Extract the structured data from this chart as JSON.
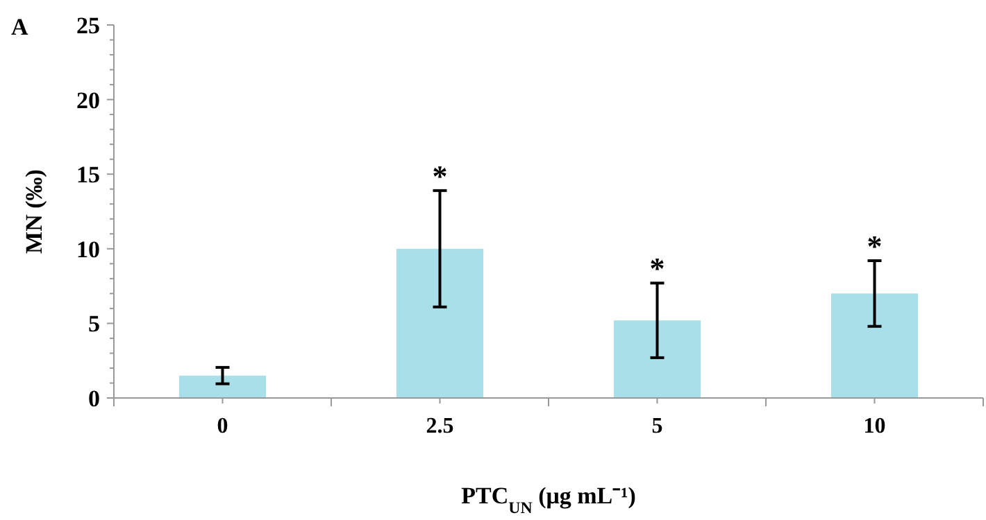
{
  "chart_data": {
    "type": "bar",
    "xlabel": "PTC$_{UN}$ (μg mL⁻¹)",
    "ylabel": "MN (‰)",
    "categories": [
      "0",
      "2.5",
      "5",
      "10"
    ],
    "values": [
      1.5,
      10.0,
      5.2,
      7.0
    ],
    "errors": [
      0.55,
      3.9,
      2.5,
      2.2
    ],
    "color": "#a8dfe9",
    "ylim": [
      0,
      25
    ],
    "yticks": [
      0,
      {
        "value": 1,
        "label": null
      },
      {
        "value": 2,
        "label": null
      },
      {
        "value": 3,
        "label": null
      },
      {
        "value": 4,
        "label": null
      },
      5,
      {
        "value": 6,
        "label": null
      },
      {
        "value": 7,
        "label": null
      },
      {
        "value": 8,
        "label": null
      },
      {
        "value": 9,
        "label": null
      },
      10,
      {
        "value": 11,
        "label": null
      },
      {
        "value": 12,
        "label": null
      },
      {
        "value": 13,
        "label": null
      },
      {
        "value": 14,
        "label": null
      },
      15,
      {
        "value": 16,
        "label": null
      },
      {
        "value": 17,
        "label": null
      },
      {
        "value": 18,
        "label": null
      },
      {
        "value": 19,
        "label": null
      },
      20,
      {
        "value": 21,
        "label": null
      },
      {
        "value": 22,
        "label": null
      },
      {
        "value": 23,
        "label": null
      },
      {
        "value": 24,
        "label": null
      },
      25
    ],
    "annotations": [
      "A",
      {
        "text": "*",
        "x": "2.5",
        "y": 13.9
      },
      {
        "text": "*",
        "x": "5",
        "y": 7.7
      },
      {
        "text": "*",
        "x": "10",
        "y": 9.2
      }
    ]
  }
}
